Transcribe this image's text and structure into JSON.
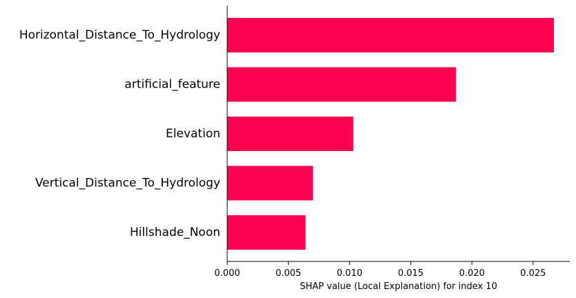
{
  "chart_data": {
    "type": "bar",
    "orientation": "horizontal",
    "categories": [
      "Horizontal_Distance_To_Hydrology",
      "artificial_feature",
      "Elevation",
      "Vertical_Distance_To_Hydrology",
      "Hillshade_Noon"
    ],
    "values": [
      0.0267,
      0.0187,
      0.0103,
      0.007,
      0.0064
    ],
    "xlabel": "SHAP value (Local Explanation) for index 10",
    "xlim": [
      0.0,
      0.028
    ],
    "xticks": [
      "0.000",
      "0.005",
      "0.010",
      "0.015",
      "0.020",
      "0.025"
    ],
    "xtick_values": [
      0.0,
      0.005,
      0.01,
      0.015,
      0.02,
      0.025
    ],
    "bar_color": "#ff0051",
    "grid": false
  }
}
